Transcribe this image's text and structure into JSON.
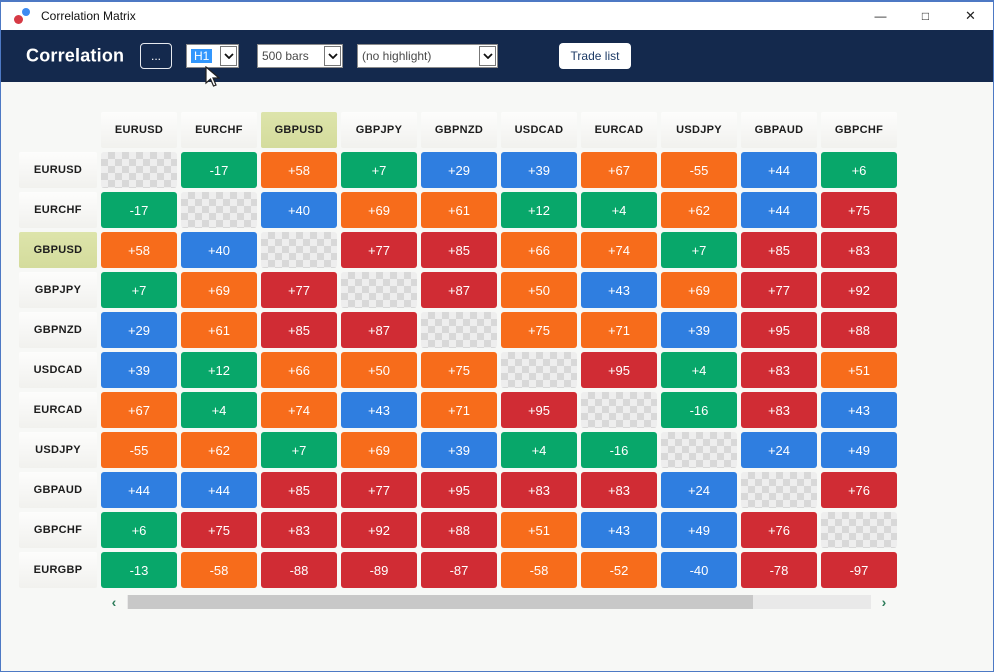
{
  "window": {
    "title": "Correlation Matrix",
    "controls": {
      "minimize": "—",
      "maximize": "□",
      "close": "✕"
    }
  },
  "toolbar": {
    "title": "Correlation",
    "menu_button_label": "...",
    "timeframe_value": "H1",
    "bars_value": "500 bars",
    "highlight_value": "(no highlight)",
    "trade_list_label": "Trade list"
  },
  "colors": {
    "green": "#08a76a",
    "orange": "#f76c1b",
    "blue": "#2f7ee0",
    "red": "#d02c34",
    "toolbar_bg": "#14294d",
    "highlight_bg": "#d9e0a5",
    "selection_blue": "#3297fd"
  },
  "scrollbar": {
    "left_arrow": "‹",
    "right_arrow": "›"
  },
  "matrix": {
    "highlighted_symbol": "GBPUSD",
    "columns": [
      "EURUSD",
      "EURCHF",
      "GBPUSD",
      "GBPJPY",
      "GBPNZD",
      "USDCAD",
      "EURCAD",
      "USDJPY",
      "GBPAUD",
      "GBPCHF"
    ],
    "rows": [
      {
        "symbol": "EURUSD",
        "cells": [
          {
            "v": "",
            "c": "diag"
          },
          {
            "v": "-17",
            "c": "green"
          },
          {
            "v": "+58",
            "c": "orange"
          },
          {
            "v": "+7",
            "c": "green"
          },
          {
            "v": "+29",
            "c": "blue"
          },
          {
            "v": "+39",
            "c": "blue"
          },
          {
            "v": "+67",
            "c": "orange"
          },
          {
            "v": "-55",
            "c": "orange"
          },
          {
            "v": "+44",
            "c": "blue"
          },
          {
            "v": "+6",
            "c": "green"
          }
        ]
      },
      {
        "symbol": "EURCHF",
        "cells": [
          {
            "v": "-17",
            "c": "green"
          },
          {
            "v": "",
            "c": "diag"
          },
          {
            "v": "+40",
            "c": "blue"
          },
          {
            "v": "+69",
            "c": "orange"
          },
          {
            "v": "+61",
            "c": "orange"
          },
          {
            "v": "+12",
            "c": "green"
          },
          {
            "v": "+4",
            "c": "green"
          },
          {
            "v": "+62",
            "c": "orange"
          },
          {
            "v": "+44",
            "c": "blue"
          },
          {
            "v": "+75",
            "c": "red"
          }
        ]
      },
      {
        "symbol": "GBPUSD",
        "cells": [
          {
            "v": "+58",
            "c": "orange"
          },
          {
            "v": "+40",
            "c": "blue"
          },
          {
            "v": "",
            "c": "diag"
          },
          {
            "v": "+77",
            "c": "red"
          },
          {
            "v": "+85",
            "c": "red"
          },
          {
            "v": "+66",
            "c": "orange"
          },
          {
            "v": "+74",
            "c": "orange"
          },
          {
            "v": "+7",
            "c": "green"
          },
          {
            "v": "+85",
            "c": "red"
          },
          {
            "v": "+83",
            "c": "red"
          }
        ]
      },
      {
        "symbol": "GBPJPY",
        "cells": [
          {
            "v": "+7",
            "c": "green"
          },
          {
            "v": "+69",
            "c": "orange"
          },
          {
            "v": "+77",
            "c": "red"
          },
          {
            "v": "",
            "c": "diag"
          },
          {
            "v": "+87",
            "c": "red"
          },
          {
            "v": "+50",
            "c": "orange"
          },
          {
            "v": "+43",
            "c": "blue"
          },
          {
            "v": "+69",
            "c": "orange"
          },
          {
            "v": "+77",
            "c": "red"
          },
          {
            "v": "+92",
            "c": "red"
          }
        ]
      },
      {
        "symbol": "GBPNZD",
        "cells": [
          {
            "v": "+29",
            "c": "blue"
          },
          {
            "v": "+61",
            "c": "orange"
          },
          {
            "v": "+85",
            "c": "red"
          },
          {
            "v": "+87",
            "c": "red"
          },
          {
            "v": "",
            "c": "diag"
          },
          {
            "v": "+75",
            "c": "orange"
          },
          {
            "v": "+71",
            "c": "orange"
          },
          {
            "v": "+39",
            "c": "blue"
          },
          {
            "v": "+95",
            "c": "red"
          },
          {
            "v": "+88",
            "c": "red"
          }
        ]
      },
      {
        "symbol": "USDCAD",
        "cells": [
          {
            "v": "+39",
            "c": "blue"
          },
          {
            "v": "+12",
            "c": "green"
          },
          {
            "v": "+66",
            "c": "orange"
          },
          {
            "v": "+50",
            "c": "orange"
          },
          {
            "v": "+75",
            "c": "orange"
          },
          {
            "v": "",
            "c": "diag"
          },
          {
            "v": "+95",
            "c": "red"
          },
          {
            "v": "+4",
            "c": "green"
          },
          {
            "v": "+83",
            "c": "red"
          },
          {
            "v": "+51",
            "c": "orange"
          }
        ]
      },
      {
        "symbol": "EURCAD",
        "cells": [
          {
            "v": "+67",
            "c": "orange"
          },
          {
            "v": "+4",
            "c": "green"
          },
          {
            "v": "+74",
            "c": "orange"
          },
          {
            "v": "+43",
            "c": "blue"
          },
          {
            "v": "+71",
            "c": "orange"
          },
          {
            "v": "+95",
            "c": "red"
          },
          {
            "v": "",
            "c": "diag"
          },
          {
            "v": "-16",
            "c": "green"
          },
          {
            "v": "+83",
            "c": "red"
          },
          {
            "v": "+43",
            "c": "blue"
          }
        ]
      },
      {
        "symbol": "USDJPY",
        "cells": [
          {
            "v": "-55",
            "c": "orange"
          },
          {
            "v": "+62",
            "c": "orange"
          },
          {
            "v": "+7",
            "c": "green"
          },
          {
            "v": "+69",
            "c": "orange"
          },
          {
            "v": "+39",
            "c": "blue"
          },
          {
            "v": "+4",
            "c": "green"
          },
          {
            "v": "-16",
            "c": "green"
          },
          {
            "v": "",
            "c": "diag"
          },
          {
            "v": "+24",
            "c": "blue"
          },
          {
            "v": "+49",
            "c": "blue"
          }
        ]
      },
      {
        "symbol": "GBPAUD",
        "cells": [
          {
            "v": "+44",
            "c": "blue"
          },
          {
            "v": "+44",
            "c": "blue"
          },
          {
            "v": "+85",
            "c": "red"
          },
          {
            "v": "+77",
            "c": "red"
          },
          {
            "v": "+95",
            "c": "red"
          },
          {
            "v": "+83",
            "c": "red"
          },
          {
            "v": "+83",
            "c": "red"
          },
          {
            "v": "+24",
            "c": "blue"
          },
          {
            "v": "",
            "c": "diag"
          },
          {
            "v": "+76",
            "c": "red"
          }
        ]
      },
      {
        "symbol": "GBPCHF",
        "cells": [
          {
            "v": "+6",
            "c": "green"
          },
          {
            "v": "+75",
            "c": "red"
          },
          {
            "v": "+83",
            "c": "red"
          },
          {
            "v": "+92",
            "c": "red"
          },
          {
            "v": "+88",
            "c": "red"
          },
          {
            "v": "+51",
            "c": "orange"
          },
          {
            "v": "+43",
            "c": "blue"
          },
          {
            "v": "+49",
            "c": "blue"
          },
          {
            "v": "+76",
            "c": "red"
          },
          {
            "v": "",
            "c": "diag"
          }
        ]
      },
      {
        "symbol": "EURGBP",
        "cells": [
          {
            "v": "-13",
            "c": "green"
          },
          {
            "v": "-58",
            "c": "orange"
          },
          {
            "v": "-88",
            "c": "red"
          },
          {
            "v": "-89",
            "c": "red"
          },
          {
            "v": "-87",
            "c": "red"
          },
          {
            "v": "-58",
            "c": "orange"
          },
          {
            "v": "-52",
            "c": "orange"
          },
          {
            "v": "-40",
            "c": "blue"
          },
          {
            "v": "-78",
            "c": "red"
          },
          {
            "v": "-97",
            "c": "red"
          }
        ]
      }
    ]
  }
}
